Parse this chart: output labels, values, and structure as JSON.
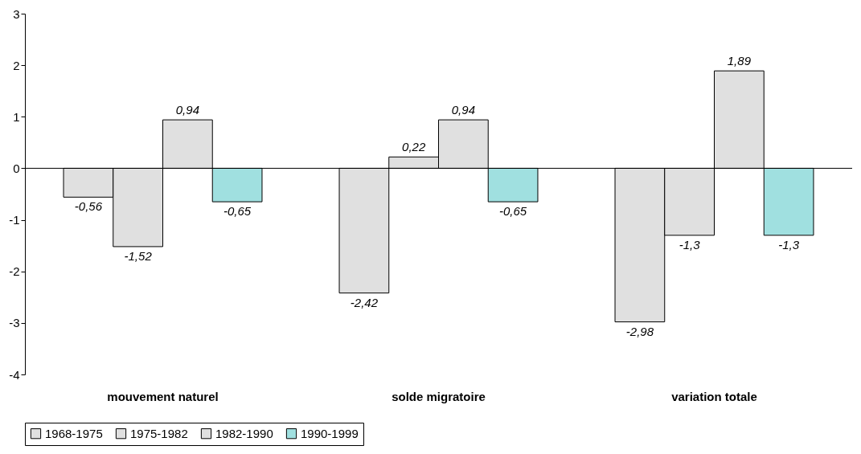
{
  "chart_data": {
    "type": "bar",
    "categories": [
      "mouvement naturel",
      "solde migratoire",
      "variation totale"
    ],
    "series": [
      {
        "name": "1968-1975",
        "color": "#e0e0e0",
        "values": [
          -0.56,
          -2.42,
          -2.98
        ],
        "value_labels": [
          "-0,56",
          "-2,42",
          "-2,98"
        ]
      },
      {
        "name": "1975-1982",
        "color": "#e0e0e0",
        "values": [
          -1.52,
          0.22,
          -1.3
        ],
        "value_labels": [
          "-1,52",
          "0,22",
          "-1,3"
        ]
      },
      {
        "name": "1982-1990",
        "color": "#e0e0e0",
        "values": [
          0.94,
          0.94,
          1.89
        ],
        "value_labels": [
          "0,94",
          "0,94",
          "1,89"
        ]
      },
      {
        "name": "1990-1999",
        "color": "#a0e0e0",
        "values": [
          -0.65,
          -0.65,
          -1.3
        ],
        "value_labels": [
          "-0,65",
          "-0,65",
          "-1,3"
        ]
      }
    ],
    "ylim": [
      -4,
      3
    ],
    "yticks": [
      -4,
      -3,
      -2,
      -1,
      0,
      1,
      2,
      3
    ],
    "legend": "bottom"
  }
}
